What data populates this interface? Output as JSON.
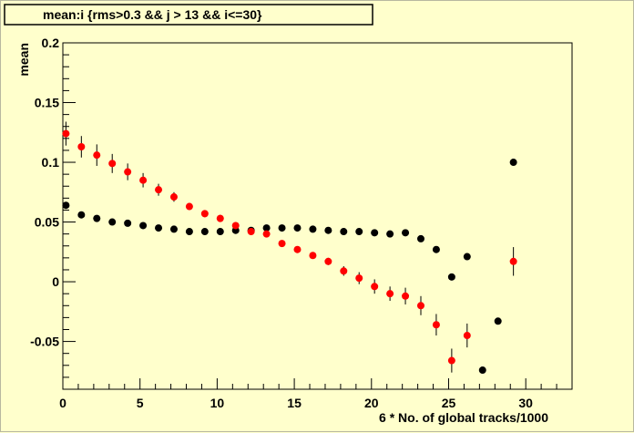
{
  "chart_data": {
    "type": "scatter",
    "title": "mean:i {rms>0.3 && j > 13 && i<=30}",
    "xlabel": "6 * No. of global tracks/1000",
    "ylabel": "mean",
    "xlim": [
      0,
      33
    ],
    "ylim": [
      -0.09,
      0.2
    ],
    "x_ticks": [
      0,
      5,
      10,
      15,
      20,
      25,
      30
    ],
    "y_ticks": [
      -0.05,
      0,
      0.05,
      0.1,
      0.15,
      0.2
    ],
    "x_tick_labels": [
      "0",
      "5",
      "10",
      "15",
      "20",
      "25",
      "30"
    ],
    "y_tick_labels": [
      "-0.05",
      "0",
      "0.05",
      "0.1",
      "0.15",
      "0.2"
    ],
    "grid": false,
    "background_color": "#ffffcc",
    "series": [
      {
        "color": "#000000",
        "points": [
          {
            "x": 0.2,
            "y": 0.064,
            "err": 0.0
          },
          {
            "x": 1.2,
            "y": 0.056,
            "err": 0.0
          },
          {
            "x": 2.2,
            "y": 0.053,
            "err": 0.0
          },
          {
            "x": 3.2,
            "y": 0.05,
            "err": 0.0
          },
          {
            "x": 4.2,
            "y": 0.049,
            "err": 0.0
          },
          {
            "x": 5.2,
            "y": 0.047,
            "err": 0.0
          },
          {
            "x": 6.2,
            "y": 0.045,
            "err": 0.0
          },
          {
            "x": 7.2,
            "y": 0.044,
            "err": 0.0
          },
          {
            "x": 8.2,
            "y": 0.042,
            "err": 0.0
          },
          {
            "x": 9.2,
            "y": 0.042,
            "err": 0.0
          },
          {
            "x": 10.2,
            "y": 0.042,
            "err": 0.0
          },
          {
            "x": 11.2,
            "y": 0.043,
            "err": 0.0
          },
          {
            "x": 12.2,
            "y": 0.043,
            "err": 0.0
          },
          {
            "x": 13.2,
            "y": 0.045,
            "err": 0.0
          },
          {
            "x": 14.2,
            "y": 0.045,
            "err": 0.0
          },
          {
            "x": 15.2,
            "y": 0.045,
            "err": 0.0
          },
          {
            "x": 16.2,
            "y": 0.044,
            "err": 0.0
          },
          {
            "x": 17.2,
            "y": 0.043,
            "err": 0.0
          },
          {
            "x": 18.2,
            "y": 0.042,
            "err": 0.0
          },
          {
            "x": 19.2,
            "y": 0.042,
            "err": 0.0
          },
          {
            "x": 20.2,
            "y": 0.041,
            "err": 0.0
          },
          {
            "x": 21.2,
            "y": 0.04,
            "err": 0.0
          },
          {
            "x": 22.2,
            "y": 0.041,
            "err": 0.0
          },
          {
            "x": 23.2,
            "y": 0.036,
            "err": 0.0
          },
          {
            "x": 24.2,
            "y": 0.027,
            "err": 0.0
          },
          {
            "x": 25.2,
            "y": 0.004,
            "err": 0.0
          },
          {
            "x": 26.2,
            "y": 0.021,
            "err": 0.0
          },
          {
            "x": 27.2,
            "y": -0.074,
            "err": 0.0
          },
          {
            "x": 28.2,
            "y": -0.033,
            "err": 0.0
          },
          {
            "x": 29.2,
            "y": 0.1,
            "err": 0.0
          }
        ]
      },
      {
        "color": "#ff0000",
        "points": [
          {
            "x": 0.2,
            "y": 0.124,
            "err": 0.01
          },
          {
            "x": 1.2,
            "y": 0.113,
            "err": 0.009
          },
          {
            "x": 2.2,
            "y": 0.106,
            "err": 0.009
          },
          {
            "x": 3.2,
            "y": 0.099,
            "err": 0.008
          },
          {
            "x": 4.2,
            "y": 0.092,
            "err": 0.007
          },
          {
            "x": 5.2,
            "y": 0.085,
            "err": 0.006
          },
          {
            "x": 6.2,
            "y": 0.077,
            "err": 0.005
          },
          {
            "x": 7.2,
            "y": 0.071,
            "err": 0.004
          },
          {
            "x": 8.2,
            "y": 0.063,
            "err": 0.003
          },
          {
            "x": 9.2,
            "y": 0.057,
            "err": 0.003
          },
          {
            "x": 10.2,
            "y": 0.053,
            "err": 0.003
          },
          {
            "x": 11.2,
            "y": 0.047,
            "err": 0.003
          },
          {
            "x": 12.2,
            "y": 0.042,
            "err": 0.002
          },
          {
            "x": 13.2,
            "y": 0.04,
            "err": 0.002
          },
          {
            "x": 14.2,
            "y": 0.032,
            "err": 0.002
          },
          {
            "x": 15.2,
            "y": 0.027,
            "err": 0.002
          },
          {
            "x": 16.2,
            "y": 0.022,
            "err": 0.002
          },
          {
            "x": 17.2,
            "y": 0.017,
            "err": 0.003
          },
          {
            "x": 18.2,
            "y": 0.009,
            "err": 0.004
          },
          {
            "x": 19.2,
            "y": 0.003,
            "err": 0.005
          },
          {
            "x": 20.2,
            "y": -0.004,
            "err": 0.006
          },
          {
            "x": 21.2,
            "y": -0.01,
            "err": 0.006
          },
          {
            "x": 22.2,
            "y": -0.012,
            "err": 0.007
          },
          {
            "x": 23.2,
            "y": -0.02,
            "err": 0.008
          },
          {
            "x": 24.2,
            "y": -0.036,
            "err": 0.009
          },
          {
            "x": 25.2,
            "y": -0.066,
            "err": 0.01
          },
          {
            "x": 26.2,
            "y": -0.045,
            "err": 0.01
          },
          {
            "x": 29.2,
            "y": 0.017,
            "err": 0.012
          }
        ]
      }
    ]
  }
}
